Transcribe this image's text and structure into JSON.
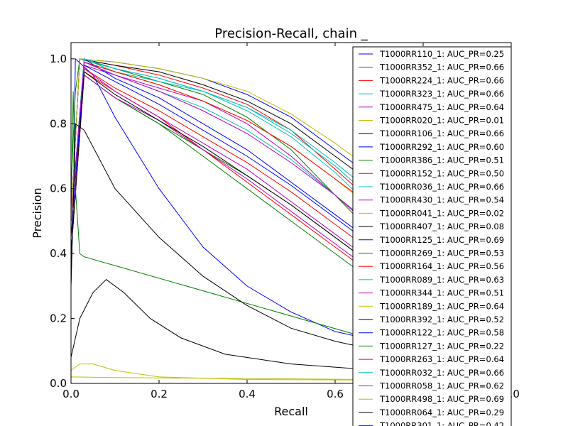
{
  "chart_data": {
    "type": "line",
    "title": "Precision-Recall, chain _",
    "xlabel": "Recall",
    "ylabel": "Precision",
    "xlim": [
      0,
      1
    ],
    "ylim": [
      0,
      1.05
    ],
    "xticks": [
      "0.0",
      "0.2",
      "0.4",
      "0.6",
      "0.8",
      "1.0"
    ],
    "yticks": [
      "0.0",
      "0.2",
      "0.4",
      "0.6",
      "0.8",
      "1.0"
    ],
    "legend_position": "top-right",
    "series": [
      {
        "name": "T1000RR110_1: AUC_PR=0.25",
        "color": "#0000ff",
        "points": [
          [
            0,
            0.3
          ],
          [
            0.005,
            0.55
          ],
          [
            0.01,
            1.0
          ],
          [
            0.05,
            0.95
          ],
          [
            0.1,
            0.82
          ],
          [
            0.2,
            0.6
          ],
          [
            0.3,
            0.42
          ],
          [
            0.4,
            0.3
          ],
          [
            0.5,
            0.22
          ],
          [
            0.6,
            0.16
          ],
          [
            0.7,
            0.13
          ]
        ]
      },
      {
        "name": "T1000RR352_1: AUC_PR=0.66",
        "color": "#008000",
        "points": [
          [
            0,
            0.6
          ],
          [
            0.01,
            0.9
          ],
          [
            0.02,
            1.0
          ],
          [
            0.1,
            0.97
          ],
          [
            0.2,
            0.93
          ],
          [
            0.3,
            0.89
          ],
          [
            0.4,
            0.82
          ],
          [
            0.5,
            0.72
          ],
          [
            0.6,
            0.58
          ],
          [
            0.7,
            0.44
          ]
        ]
      },
      {
        "name": "T1000RR224_1: AUC_PR=0.66",
        "color": "#ff0000",
        "points": [
          [
            0,
            0.5
          ],
          [
            0.02,
            1.0
          ],
          [
            0.1,
            0.98
          ],
          [
            0.2,
            0.95
          ],
          [
            0.3,
            0.91
          ],
          [
            0.4,
            0.86
          ],
          [
            0.5,
            0.78
          ],
          [
            0.6,
            0.66
          ],
          [
            0.7,
            0.54
          ]
        ]
      },
      {
        "name": "T1000RR323_1: AUC_PR=0.66",
        "color": "#00bfbf",
        "points": [
          [
            0,
            0.5
          ],
          [
            0.03,
            1.0
          ],
          [
            0.1,
            0.96
          ],
          [
            0.2,
            0.93
          ],
          [
            0.3,
            0.9
          ],
          [
            0.4,
            0.84
          ],
          [
            0.5,
            0.76
          ],
          [
            0.6,
            0.65
          ],
          [
            0.7,
            0.52
          ]
        ]
      },
      {
        "name": "T1000RR475_1: AUC_PR=0.64",
        "color": "#bf00bf",
        "points": [
          [
            0,
            0.5
          ],
          [
            0.03,
            0.98
          ],
          [
            0.1,
            0.95
          ],
          [
            0.2,
            0.91
          ],
          [
            0.3,
            0.87
          ],
          [
            0.4,
            0.8
          ],
          [
            0.5,
            0.7
          ],
          [
            0.6,
            0.58
          ],
          [
            0.7,
            0.46
          ]
        ]
      },
      {
        "name": "T1000RR020_1: AUC_PR=0.01",
        "color": "#bfbf00",
        "points": [
          [
            0,
            0.04
          ],
          [
            0.02,
            0.06
          ],
          [
            0.05,
            0.06
          ],
          [
            0.1,
            0.04
          ],
          [
            0.2,
            0.02
          ],
          [
            0.4,
            0.012
          ],
          [
            0.7,
            0.01
          ]
        ]
      },
      {
        "name": "T1000RR106_1: AUC_PR=0.66",
        "color": "#000000",
        "points": [
          [
            0,
            0.5
          ],
          [
            0.02,
            1.0
          ],
          [
            0.1,
            0.98
          ],
          [
            0.2,
            0.96
          ],
          [
            0.3,
            0.92
          ],
          [
            0.4,
            0.87
          ],
          [
            0.5,
            0.8
          ],
          [
            0.6,
            0.7
          ],
          [
            0.7,
            0.6
          ]
        ]
      },
      {
        "name": "T1000RR292_1: AUC_PR=0.60",
        "color": "#0000ff",
        "points": [
          [
            0,
            0.5
          ],
          [
            0.03,
            1.0
          ],
          [
            0.1,
            0.94
          ],
          [
            0.2,
            0.88
          ],
          [
            0.3,
            0.8
          ],
          [
            0.4,
            0.72
          ],
          [
            0.5,
            0.62
          ],
          [
            0.6,
            0.52
          ],
          [
            0.7,
            0.42
          ]
        ]
      },
      {
        "name": "T1000RR386_1: AUC_PR=0.51",
        "color": "#008000",
        "points": [
          [
            0,
            0.4
          ],
          [
            0.03,
            0.95
          ],
          [
            0.1,
            0.88
          ],
          [
            0.2,
            0.8
          ],
          [
            0.3,
            0.7
          ],
          [
            0.4,
            0.6
          ],
          [
            0.5,
            0.5
          ],
          [
            0.6,
            0.4
          ],
          [
            0.7,
            0.3
          ]
        ]
      },
      {
        "name": "T1000RR152_1: AUC_PR=0.50",
        "color": "#ff0000",
        "points": [
          [
            0,
            0.4
          ],
          [
            0.03,
            0.96
          ],
          [
            0.1,
            0.9
          ],
          [
            0.2,
            0.82
          ],
          [
            0.3,
            0.72
          ],
          [
            0.4,
            0.62
          ],
          [
            0.5,
            0.52
          ],
          [
            0.6,
            0.42
          ],
          [
            0.7,
            0.32
          ]
        ]
      },
      {
        "name": "T1000RR036_1: AUC_PR=0.66",
        "color": "#00bfbf",
        "points": [
          [
            0,
            0.5
          ],
          [
            0.03,
            1.0
          ],
          [
            0.1,
            0.97
          ],
          [
            0.2,
            0.94
          ],
          [
            0.3,
            0.9
          ],
          [
            0.4,
            0.85
          ],
          [
            0.5,
            0.77
          ],
          [
            0.6,
            0.67
          ],
          [
            0.7,
            0.55
          ]
        ]
      },
      {
        "name": "T1000RR430_1: AUC_PR=0.54",
        "color": "#bf00bf",
        "points": [
          [
            0,
            0.4
          ],
          [
            0.03,
            0.97
          ],
          [
            0.1,
            0.9
          ],
          [
            0.2,
            0.82
          ],
          [
            0.3,
            0.74
          ],
          [
            0.4,
            0.66
          ],
          [
            0.5,
            0.56
          ],
          [
            0.6,
            0.46
          ],
          [
            0.7,
            0.36
          ]
        ]
      },
      {
        "name": "T1000RR041_1: AUC_PR=0.02",
        "color": "#bfbf00",
        "points": [
          [
            0,
            0.02
          ],
          [
            0.1,
            0.018
          ],
          [
            0.3,
            0.016
          ],
          [
            0.5,
            0.014
          ],
          [
            0.7,
            0.012
          ]
        ]
      },
      {
        "name": "T1000RR407_1: AUC_PR=0.08",
        "color": "#000000",
        "points": [
          [
            0,
            0.08
          ],
          [
            0.02,
            0.2
          ],
          [
            0.05,
            0.28
          ],
          [
            0.08,
            0.32
          ],
          [
            0.12,
            0.28
          ],
          [
            0.18,
            0.2
          ],
          [
            0.25,
            0.14
          ],
          [
            0.35,
            0.09
          ],
          [
            0.5,
            0.06
          ],
          [
            0.7,
            0.04
          ]
        ]
      },
      {
        "name": "T1000RR125_1: AUC_PR=0.69",
        "color": "#0000ff",
        "points": [
          [
            0,
            0.5
          ],
          [
            0.02,
            1.0
          ],
          [
            0.1,
            0.99
          ],
          [
            0.2,
            0.97
          ],
          [
            0.3,
            0.94
          ],
          [
            0.4,
            0.89
          ],
          [
            0.5,
            0.82
          ],
          [
            0.6,
            0.72
          ],
          [
            0.7,
            0.62
          ]
        ]
      },
      {
        "name": "T1000RR269_1: AUC_PR=0.53",
        "color": "#008000",
        "points": [
          [
            0,
            0.4
          ],
          [
            0.03,
            0.95
          ],
          [
            0.1,
            0.88
          ],
          [
            0.2,
            0.8
          ],
          [
            0.3,
            0.72
          ],
          [
            0.4,
            0.64
          ],
          [
            0.5,
            0.55
          ],
          [
            0.6,
            0.45
          ],
          [
            0.7,
            0.35
          ]
        ]
      },
      {
        "name": "T1000RR164_1: AUC_PR=0.56",
        "color": "#ff0000",
        "points": [
          [
            0,
            0.4
          ],
          [
            0.03,
            0.97
          ],
          [
            0.1,
            0.91
          ],
          [
            0.2,
            0.84
          ],
          [
            0.3,
            0.76
          ],
          [
            0.4,
            0.68
          ],
          [
            0.5,
            0.59
          ],
          [
            0.6,
            0.49
          ],
          [
            0.7,
            0.39
          ]
        ]
      },
      {
        "name": "T1000RR089_1: AUC_PR=0.63",
        "color": "#00bfbf",
        "points": [
          [
            0,
            0.5
          ],
          [
            0.03,
            0.99
          ],
          [
            0.1,
            0.95
          ],
          [
            0.2,
            0.9
          ],
          [
            0.3,
            0.85
          ],
          [
            0.4,
            0.78
          ],
          [
            0.5,
            0.69
          ],
          [
            0.6,
            0.58
          ],
          [
            0.7,
            0.47
          ]
        ]
      },
      {
        "name": "T1000RR344_1: AUC_PR=0.51",
        "color": "#bf00bf",
        "points": [
          [
            0,
            0.4
          ],
          [
            0.03,
            0.95
          ],
          [
            0.1,
            0.88
          ],
          [
            0.2,
            0.81
          ],
          [
            0.3,
            0.72
          ],
          [
            0.4,
            0.63
          ],
          [
            0.5,
            0.53
          ],
          [
            0.6,
            0.43
          ],
          [
            0.7,
            0.33
          ]
        ]
      },
      {
        "name": "T1000RR189_1: AUC_PR=0.64",
        "color": "#bfbf00",
        "points": [
          [
            0,
            0.5
          ],
          [
            0.03,
            0.99
          ],
          [
            0.1,
            0.96
          ],
          [
            0.2,
            0.92
          ],
          [
            0.3,
            0.87
          ],
          [
            0.4,
            0.81
          ],
          [
            0.5,
            0.73
          ],
          [
            0.6,
            0.63
          ],
          [
            0.7,
            0.52
          ]
        ]
      },
      {
        "name": "T1000RR392_1: AUC_PR=0.52",
        "color": "#000000",
        "points": [
          [
            0,
            0.4
          ],
          [
            0.03,
            0.96
          ],
          [
            0.1,
            0.89
          ],
          [
            0.2,
            0.81
          ],
          [
            0.3,
            0.73
          ],
          [
            0.4,
            0.64
          ],
          [
            0.5,
            0.55
          ],
          [
            0.6,
            0.45
          ],
          [
            0.7,
            0.35
          ]
        ]
      },
      {
        "name": "T1000RR122_1: AUC_PR=0.58",
        "color": "#0000ff",
        "points": [
          [
            0,
            0.45
          ],
          [
            0.03,
            0.98
          ],
          [
            0.1,
            0.93
          ],
          [
            0.2,
            0.86
          ],
          [
            0.3,
            0.78
          ],
          [
            0.4,
            0.7
          ],
          [
            0.5,
            0.61
          ],
          [
            0.6,
            0.51
          ],
          [
            0.7,
            0.41
          ]
        ]
      },
      {
        "name": "T1000RR127_1: AUC_PR=0.22",
        "color": "#008000",
        "points": [
          [
            0,
            0.5
          ],
          [
            0.005,
            0.9
          ],
          [
            0.01,
            0.6
          ],
          [
            0.02,
            0.4
          ],
          [
            0.03,
            0.39
          ],
          [
            0.7,
            0.13
          ]
        ]
      },
      {
        "name": "T1000RR263_1: AUC_PR=0.64",
        "color": "#ff0000",
        "points": [
          [
            0,
            0.5
          ],
          [
            0.03,
            0.99
          ],
          [
            0.1,
            0.96
          ],
          [
            0.2,
            0.92
          ],
          [
            0.3,
            0.87
          ],
          [
            0.4,
            0.81
          ],
          [
            0.5,
            0.73
          ],
          [
            0.6,
            0.63
          ],
          [
            0.7,
            0.53
          ]
        ]
      },
      {
        "name": "T1000RR032_1: AUC_PR=0.66",
        "color": "#00bfbf",
        "points": [
          [
            0,
            0.5
          ],
          [
            0.03,
            1.0
          ],
          [
            0.1,
            0.97
          ],
          [
            0.2,
            0.94
          ],
          [
            0.3,
            0.9
          ],
          [
            0.4,
            0.85
          ],
          [
            0.5,
            0.78
          ],
          [
            0.6,
            0.68
          ],
          [
            0.7,
            0.57
          ]
        ]
      },
      {
        "name": "T1000RR058_1: AUC_PR=0.62",
        "color": "#bf00bf",
        "points": [
          [
            0,
            0.5
          ],
          [
            0.03,
            0.99
          ],
          [
            0.1,
            0.95
          ],
          [
            0.2,
            0.9
          ],
          [
            0.3,
            0.84
          ],
          [
            0.4,
            0.77
          ],
          [
            0.5,
            0.68
          ],
          [
            0.6,
            0.58
          ],
          [
            0.7,
            0.47
          ]
        ]
      },
      {
        "name": "T1000RR498_1: AUC_PR=0.69",
        "color": "#bfbf00",
        "points": [
          [
            0,
            0.5
          ],
          [
            0.02,
            1.0
          ],
          [
            0.1,
            0.99
          ],
          [
            0.2,
            0.97
          ],
          [
            0.3,
            0.94
          ],
          [
            0.4,
            0.9
          ],
          [
            0.5,
            0.83
          ],
          [
            0.6,
            0.74
          ],
          [
            0.7,
            0.64
          ]
        ]
      },
      {
        "name": "T1000RR064_1: AUC_PR=0.29",
        "color": "#000000",
        "points": [
          [
            0,
            0.3
          ],
          [
            0.01,
            0.8
          ],
          [
            0.03,
            0.78
          ],
          [
            0.1,
            0.6
          ],
          [
            0.2,
            0.45
          ],
          [
            0.3,
            0.33
          ],
          [
            0.4,
            0.24
          ],
          [
            0.5,
            0.17
          ],
          [
            0.6,
            0.13
          ],
          [
            0.7,
            0.1
          ]
        ]
      }
    ],
    "extra_legend_text": "T1000RR301_1: AUC_PR=0.42"
  }
}
